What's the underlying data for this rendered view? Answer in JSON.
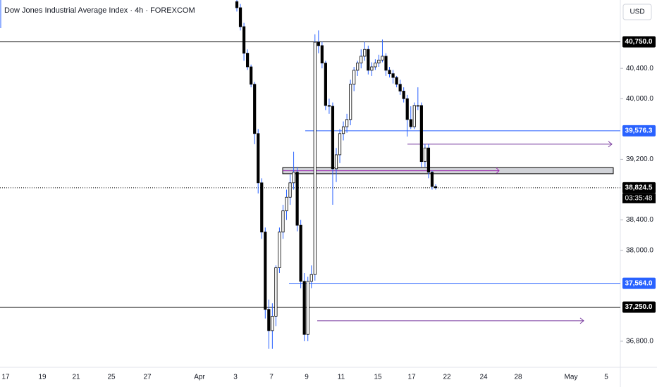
{
  "chart_data": {
    "type": "candlestick",
    "title": "Dow Jones Industrial Average Index · 4h · FOREXCOM",
    "currency": "USD",
    "ylim": [
      36456,
      41302
    ],
    "yticks": [
      {
        "value": 40400,
        "label": "40,400.0"
      },
      {
        "value": 40000,
        "label": "40,000.0"
      },
      {
        "value": 39200,
        "label": "39,200.0"
      },
      {
        "value": 38400,
        "label": "38,400.0"
      },
      {
        "value": 38000,
        "label": "38,000.0"
      },
      {
        "value": 36800,
        "label": "36,800.0"
      }
    ],
    "x_labels": [
      "17",
      "19",
      "21",
      "25",
      "27",
      "Apr",
      "3",
      "7",
      "9",
      "11",
      "15",
      "17",
      "22",
      "24",
      "28",
      "May",
      "5"
    ],
    "up_color": "#ffffff",
    "down_color": "#000000",
    "wick_color": "#2962ff",
    "ohlc": [
      [
        41280,
        41310,
        41150,
        41200
      ],
      [
        41200,
        41250,
        40900,
        40950
      ],
      [
        40950,
        41000,
        40500,
        40600
      ],
      [
        40600,
        40650,
        40380,
        40420
      ],
      [
        40420,
        40450,
        40150,
        40190
      ],
      [
        40190,
        40220,
        39400,
        39540
      ],
      [
        39540,
        39600,
        38750,
        38890
      ],
      [
        38890,
        38950,
        38150,
        38240
      ],
      [
        38240,
        38300,
        37100,
        37220
      ],
      [
        37220,
        37350,
        36700,
        36940
      ],
      [
        36940,
        37300,
        36700,
        37130
      ],
      [
        37130,
        37800,
        37000,
        37770
      ],
      [
        37770,
        38300,
        37700,
        38240
      ],
      [
        38240,
        38600,
        38150,
        38520
      ],
      [
        38520,
        38800,
        38400,
        38700
      ],
      [
        38700,
        39000,
        38600,
        38890
      ],
      [
        38890,
        39300,
        38800,
        39030
      ],
      [
        39030,
        39100,
        38250,
        38330
      ],
      [
        38330,
        38400,
        37500,
        37590
      ],
      [
        37590,
        37700,
        36800,
        36890
      ],
      [
        36890,
        37650,
        36800,
        37590
      ],
      [
        37590,
        37800,
        37500,
        37680
      ],
      [
        37680,
        40850,
        37600,
        40745
      ],
      [
        40745,
        40900,
        40600,
        40700
      ],
      [
        40700,
        40750,
        40400,
        40470
      ],
      [
        40470,
        40500,
        39850,
        39910
      ],
      [
        39910,
        40000,
        39800,
        39900
      ],
      [
        39900,
        39950,
        38600,
        39075
      ],
      [
        39075,
        39350,
        38900,
        39260
      ],
      [
        39260,
        39600,
        39150,
        39540
      ],
      [
        39540,
        39700,
        39450,
        39630
      ],
      [
        39630,
        39800,
        39550,
        39725
      ],
      [
        39725,
        40250,
        39650,
        40190
      ],
      [
        40190,
        40420,
        40100,
        40375
      ],
      [
        40375,
        40500,
        40300,
        40470
      ],
      [
        40470,
        40650,
        40400,
        40560
      ],
      [
        40560,
        40750,
        40500,
        40650
      ],
      [
        40650,
        40700,
        40320,
        40375
      ],
      [
        40375,
        40480,
        40300,
        40420
      ],
      [
        40420,
        40520,
        40380,
        40470
      ],
      [
        40470,
        40580,
        40420,
        40510
      ],
      [
        40510,
        40780,
        40480,
        40560
      ],
      [
        40560,
        40600,
        40300,
        40375
      ],
      [
        40375,
        40420,
        40280,
        40330
      ],
      [
        40330,
        40380,
        40200,
        40280
      ],
      [
        40280,
        40300,
        40150,
        40190
      ],
      [
        40190,
        40250,
        40050,
        40100
      ],
      [
        40100,
        40150,
        39950,
        40000
      ],
      [
        40000,
        40050,
        39500,
        39725
      ],
      [
        39725,
        39900,
        39600,
        39630
      ],
      [
        39630,
        39950,
        39600,
        39910
      ],
      [
        39910,
        40150,
        39850,
        39910
      ],
      [
        39910,
        39950,
        39100,
        39170
      ],
      [
        39170,
        39400,
        39100,
        39350
      ],
      [
        39350,
        39400,
        38950,
        39030
      ],
      [
        39030,
        39050,
        38800,
        38840
      ],
      [
        38840,
        38870,
        38800,
        38824.5
      ]
    ],
    "levels": [
      {
        "value": 40750,
        "label": "40,750.0",
        "color": "#000000"
      },
      {
        "value": 39576.3,
        "label": "39,576.3",
        "color": "#2962ff"
      },
      {
        "value": 38824.5,
        "label": "38,824.5",
        "color": "#000000"
      },
      {
        "value": 37564,
        "label": "37,564.0",
        "color": "#2962ff"
      },
      {
        "value": 37250,
        "label": "37,250.0",
        "color": "#000000"
      }
    ],
    "countdown": "03:35:48",
    "zone": [
      39090,
      39010
    ],
    "arrows": [
      39400,
      37070
    ]
  }
}
